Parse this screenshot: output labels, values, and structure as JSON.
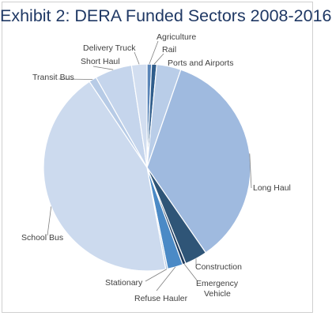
{
  "chart_data": {
    "type": "pie",
    "title": "Exhibit 2: DERA Funded Sectors 2008-2016",
    "slices": [
      {
        "label": "Agriculture",
        "value": 0.7,
        "color": "#5a85b8"
      },
      {
        "label": "Rail",
        "value": 0.8,
        "color": "#2f5d8c"
      },
      {
        "label": "Ports and Airports",
        "value": 3.8,
        "color": "#b9cde8"
      },
      {
        "label": "Long Haul",
        "value": 35.1,
        "color": "#9fbadf"
      },
      {
        "label": "Construction",
        "value": 3.5,
        "color": "#2f5577"
      },
      {
        "label": "Emergency Vehicle",
        "value": 0.5,
        "color": "#1e3a5c"
      },
      {
        "label": "Refuse Hauler",
        "value": 2.4,
        "color": "#4b8ac6"
      },
      {
        "label": "Stationary",
        "value": 0.3,
        "color": "#aec4e0"
      },
      {
        "label": "School Bus",
        "value": 43.5,
        "color": "#ccdaee"
      },
      {
        "label": "Transit Bus",
        "value": 1.2,
        "color": "#b7cbe6"
      },
      {
        "label": "Short Haul",
        "value": 5.8,
        "color": "#c5d5ec"
      },
      {
        "label": "Delivery Truck",
        "value": 2.4,
        "color": "#d2def0"
      }
    ],
    "legend": "none",
    "labels": [
      {
        "text": "Agriculture"
      },
      {
        "text": "Rail"
      },
      {
        "text": "Ports and Airports"
      },
      {
        "text": "Long Haul"
      },
      {
        "text": "Construction"
      },
      {
        "text": "Emergency"
      },
      {
        "text": "Vehicle"
      },
      {
        "text": "Refuse Hauler"
      },
      {
        "text": "Stationary"
      },
      {
        "text": "School Bus"
      },
      {
        "text": "Transit Bus"
      },
      {
        "text": "Short Haul"
      },
      {
        "text": "Delivery Truck"
      }
    ]
  }
}
